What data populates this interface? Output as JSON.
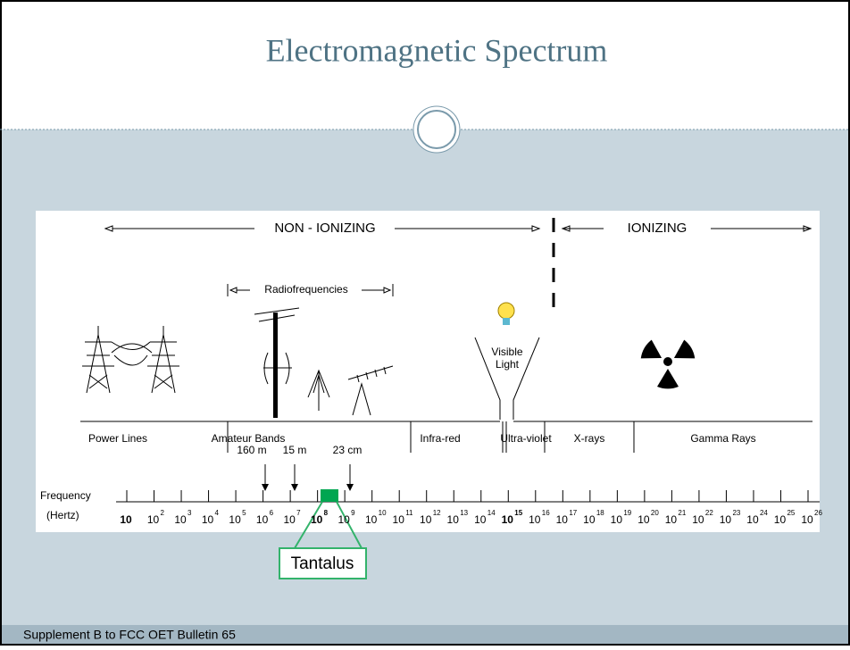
{
  "title": "Electromagnetic Spectrum",
  "footer": "Supplement B to FCC OET Bulletin 65",
  "diagram": {
    "regions": {
      "non_ionizing": "NON - IONIZING",
      "ionizing": "IONIZING"
    },
    "radiofrequencies": "Radiofrequencies",
    "visible_light": [
      "Visible",
      "Light"
    ],
    "bands": [
      {
        "label": "Power Lines"
      },
      {
        "label": "Amateur Bands"
      },
      {
        "label": "Infra-red"
      },
      {
        "label": "Ultra-violet"
      },
      {
        "label": "X-rays"
      },
      {
        "label": "Gamma Rays"
      }
    ],
    "amateur_markers": [
      "160 m",
      "15 m",
      "23 cm"
    ],
    "axis_label": [
      "Frequency",
      "(Hertz)"
    ],
    "frequency_ticks": [
      {
        "base": "10"
      },
      {
        "base": "10",
        "exp": "2"
      },
      {
        "base": "10",
        "exp": "3"
      },
      {
        "base": "10",
        "exp": "4"
      },
      {
        "base": "10",
        "exp": "5"
      },
      {
        "base": "10",
        "exp": "6"
      },
      {
        "base": "10",
        "exp": "7"
      },
      {
        "base": "10",
        "exp": "8"
      },
      {
        "base": "10",
        "exp": "9"
      },
      {
        "base": "10",
        "exp": "10"
      },
      {
        "base": "10",
        "exp": "11"
      },
      {
        "base": "10",
        "exp": "12"
      },
      {
        "base": "10",
        "exp": "13"
      },
      {
        "base": "10",
        "exp": "14"
      },
      {
        "base": "10",
        "exp": "15"
      },
      {
        "base": "10",
        "exp": "16"
      },
      {
        "base": "10",
        "exp": "17"
      },
      {
        "base": "10",
        "exp": "18"
      },
      {
        "base": "10",
        "exp": "19"
      },
      {
        "base": "10",
        "exp": "20"
      },
      {
        "base": "10",
        "exp": "21"
      },
      {
        "base": "10",
        "exp": "22"
      },
      {
        "base": "10",
        "exp": "23"
      },
      {
        "base": "10",
        "exp": "24"
      },
      {
        "base": "10",
        "exp": "25"
      },
      {
        "base": "10",
        "exp": "26"
      }
    ],
    "callout": "Tantalus"
  }
}
